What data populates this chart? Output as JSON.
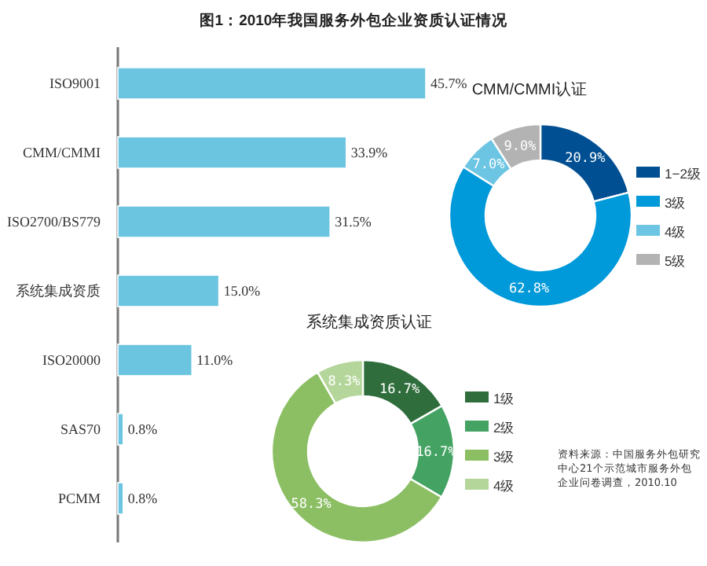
{
  "chart_data": [
    {
      "type": "bar",
      "orientation": "horizontal",
      "title": "图1：2010年我国服务外包企业资质认证情况",
      "categories": [
        "ISO9001",
        "CMM/CMMI",
        "ISO2700/BS779",
        "系统集成资质",
        "ISO20000",
        "SAS70",
        "PCMM"
      ],
      "values": [
        45.7,
        33.9,
        31.5,
        15.0,
        11.0,
        0.8,
        0.8
      ],
      "value_labels": [
        "45.7%",
        "33.9%",
        "31.5%",
        "15.0%",
        "11.0%",
        "0.8%",
        "0.8%"
      ],
      "color": "#6cc5e0"
    },
    {
      "type": "donut",
      "title": "CMM/CMMI认证",
      "categories": [
        "1−2级",
        "3级",
        "4级",
        "5级"
      ],
      "values": [
        20.9,
        62.8,
        7.0,
        9.0
      ],
      "value_labels": [
        "20.9%",
        "62.8%",
        "7.0%",
        "9.0%"
      ],
      "colors": [
        "#004f92",
        "#0099d9",
        "#6cc5e3",
        "#b3b3b3"
      ],
      "legend": "right"
    },
    {
      "type": "donut",
      "title": "系统集成资质认证",
      "categories": [
        "1级",
        "2级",
        "3级",
        "4级"
      ],
      "values": [
        16.7,
        16.7,
        58.3,
        8.3
      ],
      "value_labels": [
        "16.7%",
        "16.7%",
        "58.3%",
        "8.3%"
      ],
      "colors": [
        "#2f6e3c",
        "#44a363",
        "#8cbf63",
        "#b5d69a"
      ],
      "legend": "right",
      "annotations": [
        "资料来源：中国服务外包研究中心21个示范城市服务外包企业问卷调查，2010.10"
      ]
    }
  ]
}
